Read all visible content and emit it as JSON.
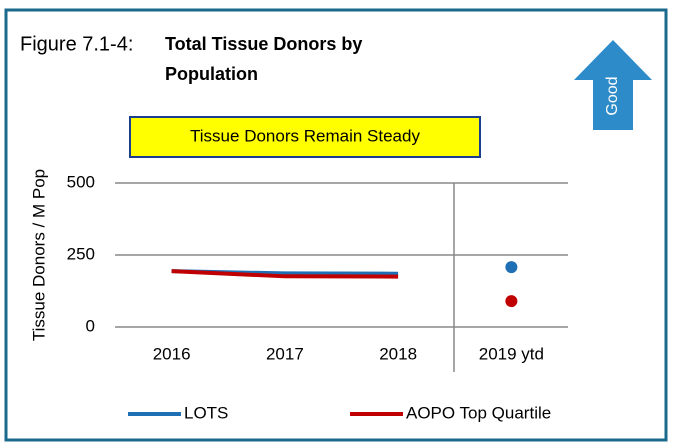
{
  "chart_data": {
    "type": "line",
    "figure_label": "Figure 7.1-4:",
    "title": [
      "Total Tissue Donors by",
      "Population"
    ],
    "annotation": "Tissue Donors Remain Steady",
    "direction_label": "Good",
    "ylabel": "Tissue Donors / M Pop",
    "categories": [
      "2016",
      "2017",
      "2018",
      "2019 ytd"
    ],
    "series": [
      {
        "name": "LOTS",
        "color": "#1f6fb4",
        "values": [
          194,
          186,
          185,
          208
        ]
      },
      {
        "name": "AOPO Top Quartile",
        "color": "#c00000",
        "values": [
          194,
          176,
          175,
          90
        ]
      }
    ],
    "ylim": [
      0,
      500
    ],
    "yticks": [
      0,
      250,
      500
    ],
    "grid": true
  }
}
